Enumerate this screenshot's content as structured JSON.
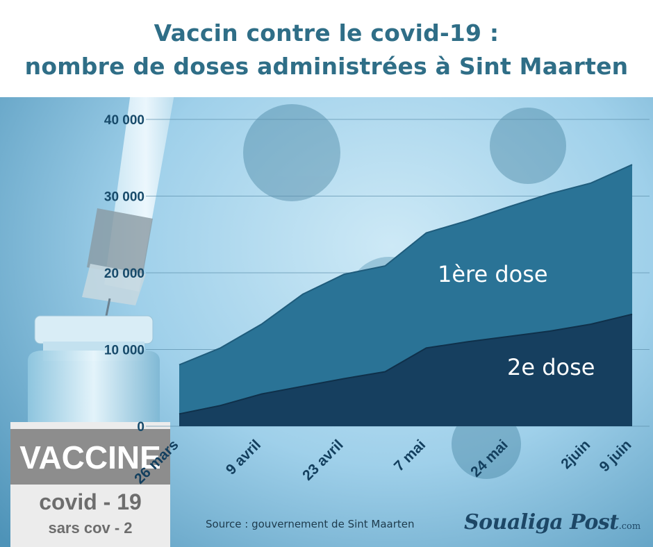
{
  "chart_data": {
    "type": "area",
    "title": "Vaccin contre le covid-19 :",
    "subtitle": "nombre de doses administrées à Sint Maarten",
    "x": [
      "26 mars",
      "",
      "9 avril",
      "",
      "23 avril",
      "",
      "7 mai",
      "",
      "24 mai",
      "",
      "2juin",
      "9 juin"
    ],
    "x_tick_labels": [
      "26 mars",
      "9 avril",
      "23 avril",
      "7 mai",
      "24 mai",
      "2juin",
      "9 juin"
    ],
    "series": [
      {
        "name": "1ère dose",
        "values": [
          8000,
          10200,
          13300,
          17200,
          19800,
          20900,
          25200,
          26800,
          28600,
          30300,
          31700,
          34100
        ]
      },
      {
        "name": "2e dose",
        "values": [
          1600,
          2700,
          4200,
          5200,
          6200,
          7100,
          10200,
          11000,
          11700,
          12400,
          13300,
          14600
        ]
      }
    ],
    "y_ticks": [
      "0",
      "10 000",
      "20 000",
      "30 000",
      "40 000"
    ],
    "ylim": [
      0,
      40000
    ],
    "grid": true,
    "colors": {
      "first_dose": "#2a7396",
      "second_dose": "#163f5f"
    }
  },
  "source": "Source : gouvernement de Sint Maarten",
  "logo": {
    "main": "Soualiga Post",
    "suffix": ".com"
  }
}
